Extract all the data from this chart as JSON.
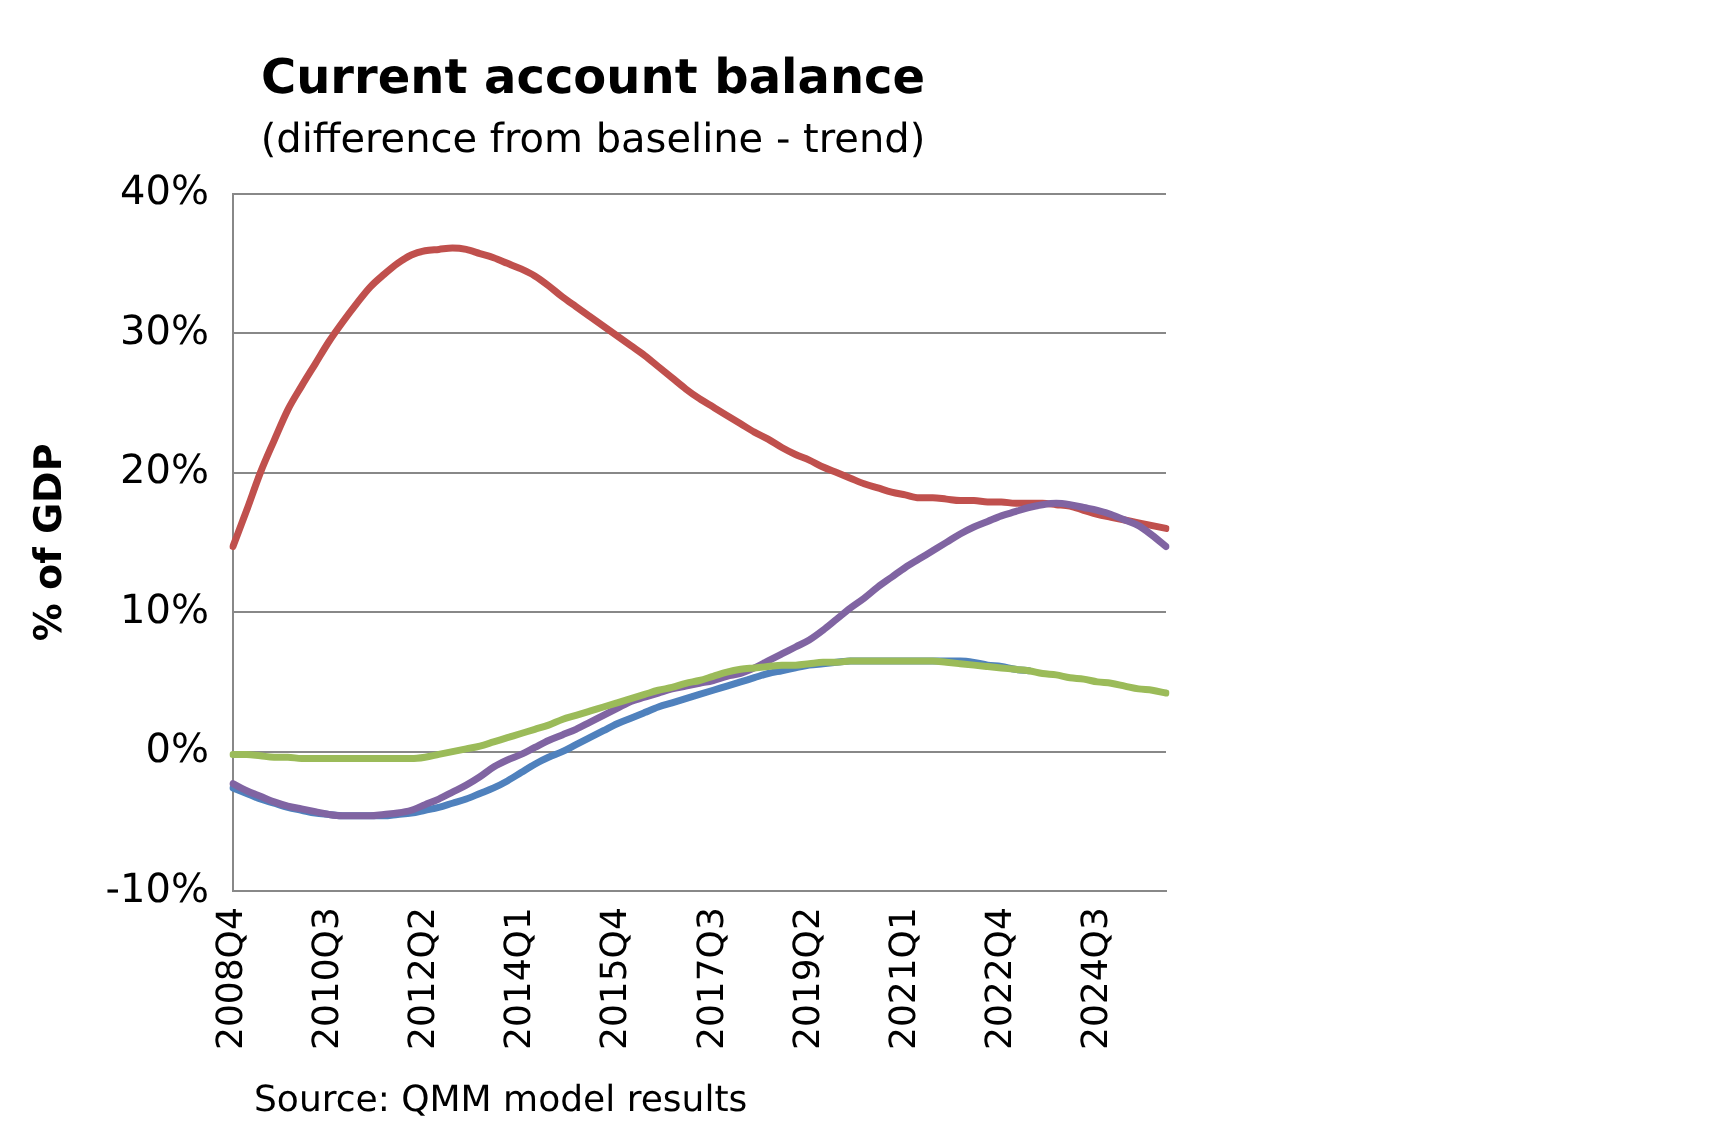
{
  "chart_data": {
    "type": "line",
    "title": "Current account balance",
    "subtitle": "(difference from baseline - trend)",
    "ylabel": "% of GDP",
    "annotations": [
      "Source: QMM model results"
    ],
    "categories": [
      "2008Q4",
      null,
      null,
      null,
      null,
      null,
      null,
      "2010Q3",
      null,
      null,
      null,
      null,
      null,
      null,
      "2012Q2",
      null,
      null,
      null,
      null,
      null,
      null,
      "2014Q1",
      null,
      null,
      null,
      null,
      null,
      null,
      "2015Q4",
      null,
      null,
      null,
      null,
      null,
      null,
      "2017Q3",
      null,
      null,
      null,
      null,
      null,
      null,
      "2019Q2",
      null,
      null,
      null,
      null,
      null,
      null,
      "2021Q1",
      null,
      null,
      null,
      null,
      null,
      null,
      "2022Q4",
      null,
      null,
      null,
      null,
      null,
      null,
      "2024Q3",
      null,
      null,
      null,
      null,
      null
    ],
    "ylim": [
      -10,
      40
    ],
    "yticks": [
      {
        "value": -10,
        "label": "-10%"
      },
      {
        "value": 0,
        "label": "0%"
      },
      {
        "value": 10,
        "label": "10%"
      },
      {
        "value": 20,
        "label": "20%"
      },
      {
        "value": 30,
        "label": "30%"
      },
      {
        "value": 40,
        "label": "40%"
      }
    ],
    "grid": "y",
    "marker": "none",
    "line_style": "solid",
    "series": [
      {
        "color": "#c0504d",
        "values": [
          14.7,
          17.3,
          20,
          22.3,
          24.5,
          26.2,
          27.8,
          29.4,
          30.8,
          32.1,
          33.3,
          34.2,
          35,
          35.6,
          35.9,
          36,
          36.1,
          36,
          35.7,
          35.4,
          35,
          34.6,
          34.1,
          33.4,
          32.6,
          31.9,
          31.2,
          30.5,
          29.8,
          29.1,
          28.4,
          27.6,
          26.8,
          26,
          25.3,
          24.7,
          24.1,
          23.5,
          22.9,
          22.4,
          21.8,
          21.3,
          20.9,
          20.4,
          20,
          19.6,
          19.2,
          18.9,
          18.6,
          18.4,
          18.2,
          18.2,
          18.1,
          18,
          18,
          17.9,
          17.9,
          17.8,
          17.8,
          17.8,
          17.7,
          17.6,
          17.3,
          17,
          16.8,
          16.6,
          16.4,
          16.2,
          16
        ]
      },
      {
        "color": "#4f81bd",
        "values": [
          -2.6,
          -3,
          -3.4,
          -3.7,
          -4,
          -4.2,
          -4.4,
          -4.5,
          -4.6,
          -4.6,
          -4.6,
          -4.6,
          -4.5,
          -4.4,
          -4.2,
          -4,
          -3.7,
          -3.4,
          -3,
          -2.6,
          -2.1,
          -1.5,
          -0.9,
          -0.4,
          0,
          0.5,
          1,
          1.5,
          2,
          2.4,
          2.8,
          3.2,
          3.5,
          3.8,
          4.1,
          4.4,
          4.7,
          5,
          5.3,
          5.6,
          5.8,
          6,
          6.2,
          6.3,
          6.4,
          6.5,
          6.5,
          6.5,
          6.5,
          6.5,
          6.5,
          6.5,
          6.5,
          6.5,
          6.4,
          6.2,
          6.1,
          5.9,
          5.8,
          null,
          null,
          null,
          null,
          null,
          null,
          null,
          null,
          null,
          null
        ]
      },
      {
        "color": "#8064a2",
        "values": [
          -2.3,
          -2.8,
          -3.2,
          -3.6,
          -3.9,
          -4.1,
          -4.3,
          -4.5,
          -4.6,
          -4.6,
          -4.6,
          -4.5,
          -4.4,
          -4.2,
          -3.8,
          -3.4,
          -2.9,
          -2.4,
          -1.8,
          -1.1,
          -0.6,
          -0.2,
          0.3,
          0.8,
          1.2,
          1.6,
          2.1,
          2.6,
          3.1,
          3.6,
          3.9,
          4.2,
          4.5,
          4.7,
          4.9,
          5.1,
          5.4,
          5.6,
          6,
          6.5,
          7,
          7.5,
          8,
          8.7,
          9.5,
          10.3,
          11,
          11.8,
          12.5,
          13.2,
          13.8,
          14.4,
          15,
          15.6,
          16.1,
          16.5,
          16.9,
          17.2,
          17.5,
          17.7,
          17.8,
          17.7,
          17.5,
          17.3,
          17,
          16.6,
          16.2,
          15.5,
          14.7
        ]
      },
      {
        "color": "#9bbb59",
        "values": [
          -0.2,
          -0.2,
          -0.3,
          -0.4,
          -0.4,
          -0.5,
          -0.5,
          -0.5,
          -0.5,
          -0.5,
          -0.5,
          -0.5,
          -0.5,
          -0.5,
          -0.4,
          -0.2,
          0,
          0.2,
          0.4,
          0.7,
          1,
          1.3,
          1.6,
          1.9,
          2.3,
          2.6,
          2.9,
          3.2,
          3.5,
          3.8,
          4.1,
          4.4,
          4.6,
          4.9,
          5.1,
          5.4,
          5.7,
          5.9,
          6,
          6.1,
          6.2,
          6.2,
          6.3,
          6.4,
          6.4,
          6.5,
          6.5,
          6.5,
          6.5,
          6.5,
          6.5,
          6.5,
          6.4,
          6.3,
          6.2,
          6.1,
          6,
          5.9,
          5.8,
          5.6,
          5.5,
          5.3,
          5.2,
          5,
          4.9,
          4.7,
          4.5,
          4.4,
          4.2
        ]
      }
    ]
  }
}
